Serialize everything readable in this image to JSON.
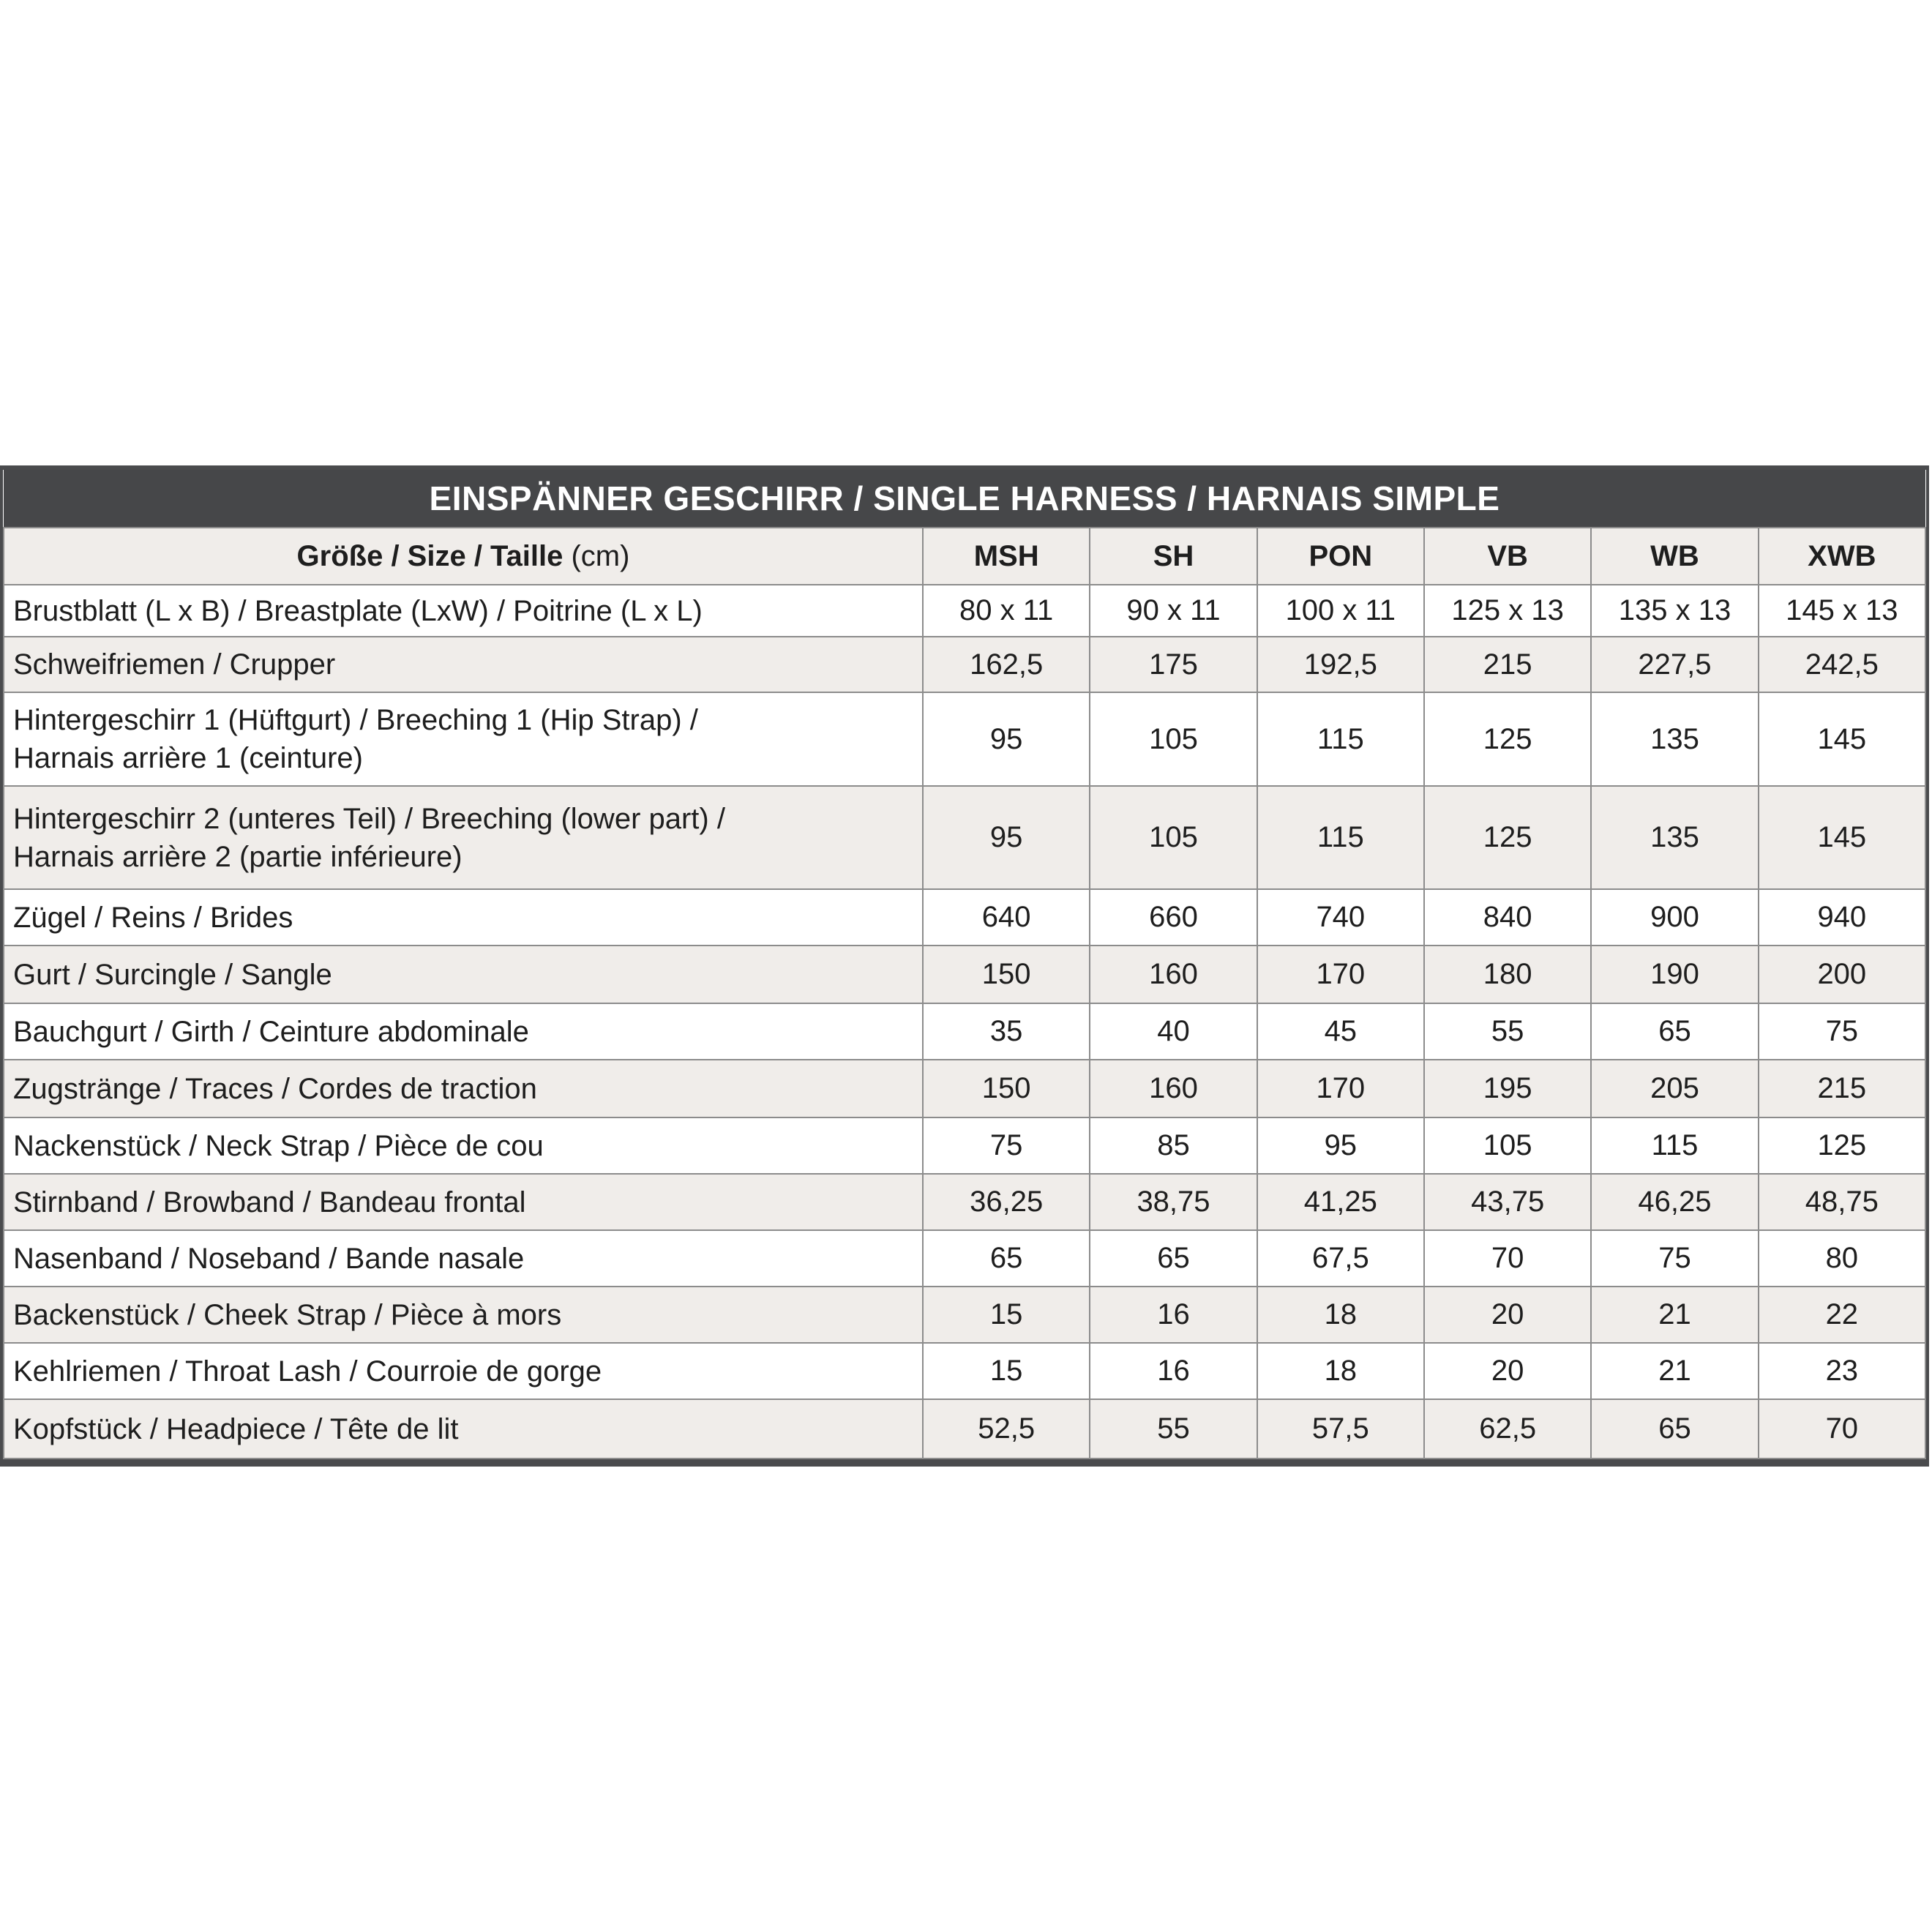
{
  "title": "EINSPÄNNER GESCHIRR / SINGLE HARNESS / HARNAIS SIMPLE",
  "header": {
    "label_bold": "Größe / Size / Taille",
    "label_unit": "(cm)",
    "sizes": [
      "MSH",
      "SH",
      "PON",
      "VB",
      "WB",
      "XWB"
    ]
  },
  "rows": [
    {
      "label": [
        "Brustblatt (L x B) / Breastplate (LxW) / Poitrine (L x L)"
      ],
      "values": [
        "80 x 11",
        "90 x 11",
        "100 x 11",
        "125 x 13",
        "135 x 13",
        "145 x 13"
      ]
    },
    {
      "label": [
        "Schweifriemen / Crupper"
      ],
      "values": [
        "162,5",
        "175",
        "192,5",
        "215",
        "227,5",
        "242,5"
      ]
    },
    {
      "label": [
        "Hintergeschirr 1 (Hüftgurt) / Breeching 1 (Hip Strap) /",
        "Harnais arrière 1 (ceinture)"
      ],
      "values": [
        "95",
        "105",
        "115",
        "125",
        "135",
        "145"
      ]
    },
    {
      "label": [
        "Hintergeschirr 2  (unteres Teil) / Breeching  (lower part) /",
        "Harnais arrière 2 (partie inférieure)"
      ],
      "values": [
        "95",
        "105",
        "115",
        "125",
        "135",
        "145"
      ]
    },
    {
      "label": [
        "Zügel / Reins / Brides"
      ],
      "values": [
        "640",
        "660",
        "740",
        "840",
        "900",
        "940"
      ]
    },
    {
      "label": [
        "Gurt / Surcingle / Sangle"
      ],
      "values": [
        "150",
        "160",
        "170",
        "180",
        "190",
        "200"
      ]
    },
    {
      "label": [
        "Bauchgurt / Girth / Ceinture abdominale"
      ],
      "values": [
        "35",
        "40",
        "45",
        "55",
        "65",
        "75"
      ]
    },
    {
      "label": [
        "Zugstränge / Traces / Cordes de traction"
      ],
      "values": [
        "150",
        "160",
        "170",
        "195",
        "205",
        "215"
      ]
    },
    {
      "label": [
        "Nackenstück / Neck Strap / Pièce de cou"
      ],
      "values": [
        "75",
        "85",
        "95",
        "105",
        "115",
        "125"
      ]
    },
    {
      "label": [
        "Stirnband / Browband / Bandeau frontal"
      ],
      "values": [
        "36,25",
        "38,75",
        "41,25",
        "43,75",
        "46,25",
        "48,75"
      ]
    },
    {
      "label": [
        "Nasenband / Noseband / Bande nasale"
      ],
      "values": [
        "65",
        "65",
        "67,5",
        "70",
        "75",
        "80"
      ]
    },
    {
      "label": [
        "Backenstück / Cheek Strap / Pièce à mors"
      ],
      "values": [
        "15",
        "16",
        "18",
        "20",
        "21",
        "22"
      ]
    },
    {
      "label": [
        "Kehlriemen / Throat Lash / Courroie de gorge"
      ],
      "values": [
        "15",
        "16",
        "18",
        "20",
        "21",
        "23"
      ]
    },
    {
      "label": [
        "Kopfstück / Headpiece / Tête de lit"
      ],
      "values": [
        "52,5",
        "55",
        "57,5",
        "62,5",
        "65",
        "70"
      ]
    }
  ]
}
